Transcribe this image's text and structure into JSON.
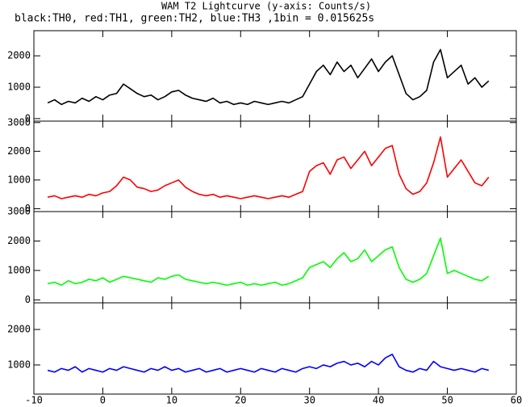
{
  "chart_data": {
    "type": "line",
    "title": "WAM T2 Lightcurve (y-axis: Counts/s)",
    "subtitle": "black:TH0, red:TH1, green:TH2, blue:TH3 ,1bin = 0.015625s",
    "x": [
      -8,
      -7,
      -6,
      -5,
      -4,
      -3,
      -2,
      -1,
      0,
      1,
      2,
      3,
      4,
      5,
      6,
      7,
      8,
      9,
      10,
      11,
      12,
      13,
      14,
      15,
      16,
      17,
      18,
      19,
      20,
      21,
      22,
      23,
      24,
      25,
      26,
      27,
      28,
      29,
      30,
      31,
      32,
      33,
      34,
      35,
      36,
      37,
      38,
      39,
      40,
      41,
      42,
      43,
      44,
      45,
      46,
      47,
      48,
      49,
      50,
      51,
      52,
      53,
      54,
      55,
      56
    ],
    "xlim": [
      -10,
      60
    ],
    "xticks": [
      -10,
      0,
      10,
      20,
      30,
      40,
      50,
      60
    ],
    "panels": [
      {
        "color": "#000000",
        "ylim": [
          -80,
          2800
        ],
        "yticks": [
          0,
          1000,
          2000
        ],
        "values": [
          500,
          600,
          450,
          550,
          500,
          650,
          550,
          700,
          600,
          750,
          800,
          1100,
          950,
          800,
          700,
          750,
          600,
          700,
          850,
          900,
          750,
          650,
          600,
          550,
          650,
          500,
          550,
          450,
          500,
          450,
          550,
          500,
          450,
          500,
          550,
          500,
          600,
          700,
          1100,
          1500,
          1700,
          1400,
          1800,
          1500,
          1700,
          1300,
          1600,
          1900,
          1500,
          1800,
          2000,
          1400,
          800,
          600,
          700,
          900,
          1800,
          2200,
          1300,
          1500,
          1700,
          1100,
          1300,
          1000,
          1200
        ]
      },
      {
        "color": "#ff0000",
        "ylim": [
          -100,
          3050
        ],
        "yticks": [
          0,
          1000,
          2000,
          3000
        ],
        "values": [
          400,
          450,
          350,
          400,
          450,
          400,
          500,
          450,
          550,
          600,
          800,
          1100,
          1000,
          750,
          700,
          600,
          650,
          800,
          900,
          1000,
          750,
          600,
          500,
          450,
          500,
          400,
          450,
          400,
          350,
          400,
          450,
          400,
          350,
          400,
          450,
          400,
          500,
          600,
          1300,
          1500,
          1600,
          1200,
          1700,
          1800,
          1400,
          1700,
          2000,
          1500,
          1800,
          2100,
          2200,
          1200,
          700,
          500,
          600,
          900,
          1600,
          2500,
          1100,
          1400,
          1700,
          1300,
          900,
          800,
          1100
        ]
      },
      {
        "color": "#00ff00",
        "ylim": [
          -100,
          3000
        ],
        "yticks": [
          0,
          1000,
          2000,
          3000
        ],
        "values": [
          550,
          600,
          500,
          650,
          550,
          600,
          700,
          650,
          750,
          600,
          700,
          800,
          750,
          700,
          650,
          600,
          750,
          700,
          800,
          850,
          700,
          650,
          600,
          550,
          600,
          550,
          500,
          550,
          600,
          500,
          550,
          500,
          550,
          600,
          500,
          550,
          650,
          750,
          1100,
          1200,
          1300,
          1100,
          1400,
          1600,
          1300,
          1400,
          1700,
          1300,
          1500,
          1700,
          1800,
          1100,
          700,
          600,
          700,
          900,
          1500,
          2100,
          900,
          1000,
          900,
          800,
          700,
          650,
          800
        ]
      },
      {
        "color": "#0000ff",
        "ylim": [
          180,
          2750
        ],
        "yticks": [
          1000,
          2000
        ],
        "values": [
          850,
          800,
          900,
          850,
          950,
          800,
          900,
          850,
          800,
          900,
          850,
          950,
          900,
          850,
          800,
          900,
          850,
          950,
          850,
          900,
          800,
          850,
          900,
          800,
          850,
          900,
          800,
          850,
          900,
          850,
          800,
          900,
          850,
          800,
          900,
          850,
          800,
          900,
          950,
          900,
          1000,
          950,
          1050,
          1100,
          1000,
          1050,
          950,
          1100,
          1000,
          1200,
          1300,
          950,
          850,
          800,
          900,
          850,
          1100,
          950,
          900,
          850,
          900,
          850,
          800,
          900,
          850
        ]
      }
    ]
  }
}
